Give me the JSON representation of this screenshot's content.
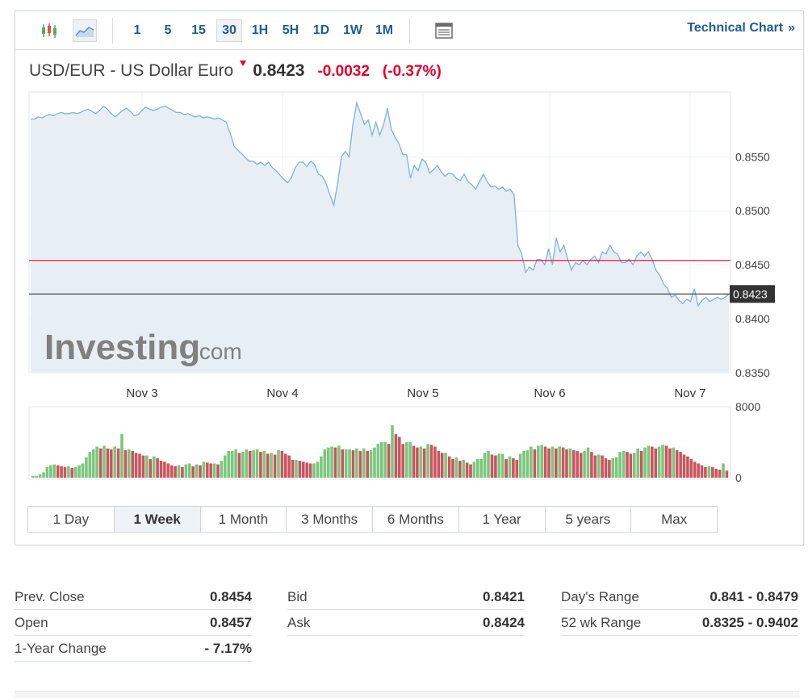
{
  "toolbar": {
    "candle_icon": "candlestick-icon",
    "area_icon": "area-chart-icon",
    "intervals": [
      "1",
      "5",
      "15",
      "30",
      "1H",
      "5H",
      "1D",
      "1W",
      "1M"
    ],
    "selected_interval": "30",
    "table_icon": "table-icon",
    "technical_link": "Technical Chart",
    "technical_arrow": "»"
  },
  "quote": {
    "name": "USD/EUR - US Dollar Euro",
    "price": "0.8423",
    "change": "-0.0032",
    "change_pct": "(-0.37%)",
    "down_color": "#e4002b"
  },
  "watermark": {
    "brand": "Investing",
    "suffix": ".com"
  },
  "chart_data": {
    "type": "area",
    "x_labels": [
      "Nov 3",
      "Nov 4",
      "Nov 5",
      "Nov 6",
      "Nov 7"
    ],
    "y_ticks": [
      "0.8550",
      "0.8500",
      "0.8450",
      "0.8400",
      "0.8350"
    ],
    "ylim": [
      0.835,
      0.861
    ],
    "prev_close": 0.8454,
    "last_price": 0.8423,
    "last_price_label": "0.8423",
    "price_series": [
      0.8585,
      0.8585,
      0.8587,
      0.8586,
      0.8588,
      0.8589,
      0.8588,
      0.859,
      0.8591,
      0.859,
      0.859,
      0.8591,
      0.859,
      0.8591,
      0.8593,
      0.8594,
      0.8592,
      0.859,
      0.8593,
      0.8597,
      0.8594,
      0.859,
      0.8587,
      0.859,
      0.8593,
      0.8595,
      0.8592,
      0.8588,
      0.8589,
      0.8593,
      0.8596,
      0.8594,
      0.8593,
      0.8594,
      0.8596,
      0.8597,
      0.8595,
      0.8593,
      0.8591,
      0.8591,
      0.8589,
      0.859,
      0.8588,
      0.8587,
      0.8588,
      0.8586,
      0.8587,
      0.8586,
      0.8585,
      0.8586,
      0.8584,
      0.8582,
      0.8572,
      0.856,
      0.8556,
      0.8553,
      0.8549,
      0.8546,
      0.8546,
      0.8543,
      0.8545,
      0.8542,
      0.8545,
      0.854,
      0.8537,
      0.8533,
      0.8529,
      0.8526,
      0.8531,
      0.854,
      0.8545,
      0.8545,
      0.8541,
      0.8546,
      0.8543,
      0.8534,
      0.8532,
      0.8525,
      0.8515,
      0.8505,
      0.8525,
      0.855,
      0.8555,
      0.855,
      0.858,
      0.86,
      0.859,
      0.858,
      0.8584,
      0.857,
      0.8582,
      0.857,
      0.858,
      0.8595,
      0.8575,
      0.8568,
      0.8562,
      0.8552,
      0.8552,
      0.853,
      0.8542,
      0.8537,
      0.8548,
      0.8545,
      0.8535,
      0.8538,
      0.8542,
      0.8536,
      0.8532,
      0.8535,
      0.8534,
      0.853,
      0.8528,
      0.8534,
      0.8527,
      0.8524,
      0.852,
      0.8527,
      0.8534,
      0.8527,
      0.8522,
      0.8523,
      0.852,
      0.8522,
      0.8518,
      0.852,
      0.8515,
      0.8468,
      0.846,
      0.8443,
      0.8448,
      0.8445,
      0.8455,
      0.8455,
      0.845,
      0.8465,
      0.845,
      0.8475,
      0.8462,
      0.8468,
      0.8455,
      0.8445,
      0.8452,
      0.845,
      0.8454,
      0.845,
      0.8455,
      0.8458,
      0.8452,
      0.8462,
      0.846,
      0.8468,
      0.8462,
      0.846,
      0.8452,
      0.8452,
      0.8455,
      0.845,
      0.8458,
      0.8462,
      0.8458,
      0.8462,
      0.8455,
      0.8445,
      0.844,
      0.8432,
      0.8428,
      0.842,
      0.8422,
      0.8417,
      0.8414,
      0.8418,
      0.8416,
      0.8428,
      0.8412,
      0.8417,
      0.842,
      0.8416,
      0.8418,
      0.842,
      0.8418,
      0.842,
      0.8423
    ],
    "volume_ticks": [
      "8000",
      "0"
    ],
    "vmax": 8000,
    "volume_series": [
      200,
      200,
      400,
      600,
      1200,
      1400,
      1500,
      1400,
      1300,
      1200,
      1300,
      1100,
      1200,
      1400,
      1600,
      2300,
      2900,
      3200,
      3500,
      3300,
      3600,
      3300,
      3200,
      3500,
      3300,
      4900,
      3100,
      3200,
      3000,
      2800,
      2700,
      2500,
      2500,
      2100,
      2400,
      2200,
      1900,
      1800,
      1600,
      1400,
      1300,
      1400,
      1200,
      1500,
      1600,
      1300,
      1500,
      1400,
      1800,
      1700,
      1600,
      1600,
      1500,
      1900,
      2500,
      3000,
      3000,
      3200,
      2800,
      2900,
      3200,
      3000,
      3100,
      3200,
      2900,
      3000,
      2700,
      2800,
      2600,
      3100,
      3000,
      2700,
      2500,
      2000,
      2000,
      1900,
      1800,
      1700,
      1600,
      1600,
      1800,
      2400,
      3200,
      3400,
      3500,
      3400,
      3600,
      3200,
      3200,
      3200,
      3100,
      3300,
      3000,
      3300,
      3000,
      3100,
      3400,
      3800,
      4000,
      4000,
      3800,
      5900,
      4900,
      4600,
      3800,
      4000,
      4000,
      3600,
      3400,
      3500,
      3300,
      3800,
      3700,
      3500,
      3000,
      2800,
      2800,
      2400,
      2100,
      2300,
      1900,
      2000,
      1700,
      1500,
      1800,
      2100,
      2100,
      2800,
      3000,
      2600,
      2500,
      2700,
      2700,
      2100,
      2400,
      2200,
      2000,
      2700,
      3000,
      3100,
      3500,
      3200,
      3600,
      3700,
      3500,
      3300,
      3500,
      3300,
      3500,
      3400,
      3200,
      3300,
      3100,
      3000,
      2800,
      3000,
      3400,
      2900,
      2500,
      2600,
      2500,
      2200,
      2000,
      2200,
      2300,
      2900,
      3000,
      2900,
      2700,
      2800,
      3300,
      3000,
      3400,
      3600,
      3500,
      3300,
      3500,
      3700,
      3600,
      3300,
      3400,
      3100,
      2900,
      2600,
      2400,
      2100,
      1800,
      1600,
      1400,
      1200,
      1300,
      1200,
      1000,
      900,
      1600,
      800
    ],
    "line_color": "#7fb0dc",
    "area_color": "#e7eff5",
    "prev_close_color": "#e4002b",
    "volume_up_color": "#7bc67e",
    "volume_down_color": "#c9565c"
  },
  "ranges": [
    "1 Day",
    "1 Week",
    "1 Month",
    "3 Months",
    "6 Months",
    "1 Year",
    "5 years",
    "Max"
  ],
  "selected_range": "1 Week",
  "stats": [
    [
      {
        "label": "Prev. Close",
        "value": "0.8454"
      },
      {
        "label": "Open",
        "value": "0.8457"
      },
      {
        "label": "1-Year Change",
        "value": "- 7.17%"
      }
    ],
    [
      {
        "label": "Bid",
        "value": "0.8421"
      },
      {
        "label": "Ask",
        "value": "0.8424"
      }
    ],
    [
      {
        "label": "Day's Range",
        "value": "0.841 - 0.8479"
      },
      {
        "label": "52 wk Range",
        "value": "0.8325 - 0.9402"
      }
    ]
  ]
}
